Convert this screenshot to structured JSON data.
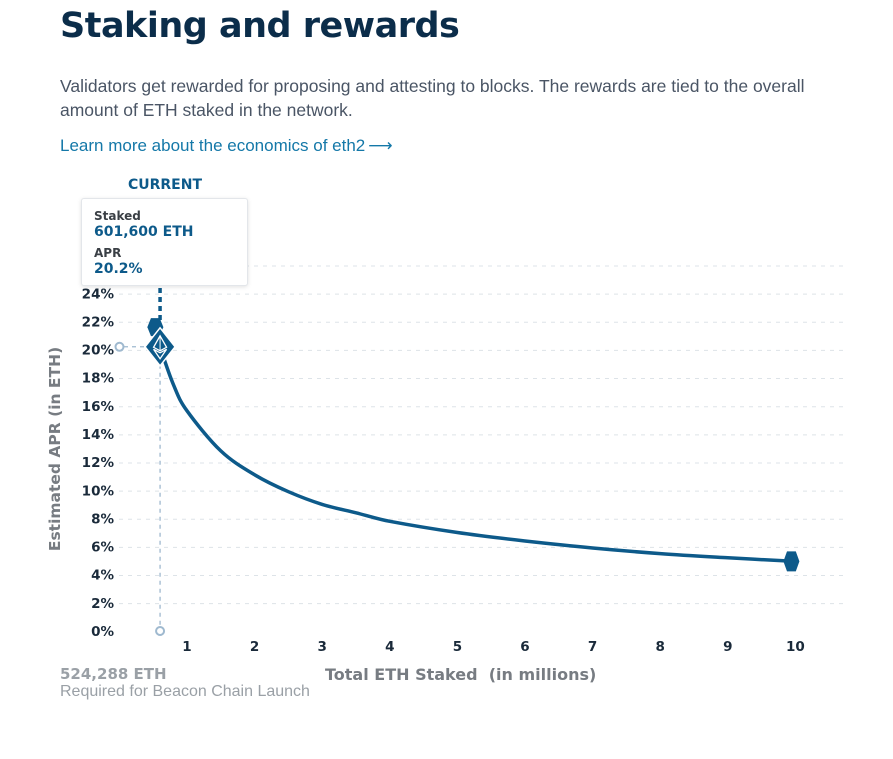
{
  "header": {
    "title": "Staking and rewards",
    "description": "Validators get rewarded for proposing and attesting to blocks. The rewards are tied to the overall amount of ETH staked in the network.",
    "link_label": "Learn more about the economics of eth2",
    "link_arrow": "⟶"
  },
  "marker": {
    "current_label": "CURRENT"
  },
  "tooltip": {
    "staked_label": "Staked",
    "staked_value": "601,600 ETH",
    "apr_label": "APR",
    "apr_value": "20.2%"
  },
  "footer": {
    "launch_eth": "524,288 ETH",
    "launch_caption": "Required for Beacon Chain Launch"
  },
  "colors": {
    "curve": "#0d5a8a",
    "grid": "#dde3e8",
    "guide": "#9fb9cf",
    "axis_text": "#1a2a3a"
  },
  "chart_data": {
    "type": "line",
    "title": "",
    "xlabel": "Total ETH Staked  (in millions)",
    "ylabel": "Estimated APR (in ETH)",
    "xlim": [
      0.0,
      10.7
    ],
    "ylim": [
      0,
      26
    ],
    "x_ticks": [
      1,
      2,
      3,
      4,
      5,
      6,
      7,
      8,
      9,
      10
    ],
    "x_tick_labels": [
      "1",
      "2",
      "3",
      "4",
      "5",
      "6",
      "7",
      "8",
      "9",
      "10"
    ],
    "y_ticks": [
      0,
      2,
      4,
      6,
      8,
      10,
      12,
      14,
      16,
      18,
      20,
      22,
      24
    ],
    "y_tick_labels": [
      "0%",
      "2%",
      "4%",
      "6%",
      "8%",
      "10%",
      "12%",
      "14%",
      "16%",
      "18%",
      "20%",
      "22%",
      "24%"
    ],
    "grid": true,
    "series": [
      {
        "x": [
          0.524288,
          0.6016,
          0.8,
          1,
          1.5,
          2,
          2.5,
          3,
          3.5,
          4,
          5,
          6,
          7,
          8,
          9,
          10
        ],
        "values": [
          21.6,
          20.2,
          17.5,
          15.65,
          12.8,
          11.1,
          9.9,
          9.0,
          8.4,
          7.8,
          7.0,
          6.4,
          5.9,
          5.5,
          5.2,
          4.95
        ]
      }
    ],
    "current": {
      "x": 0.6016,
      "y": 20.2
    },
    "launch": {
      "x": 0.524288,
      "y": 21.6
    },
    "end": {
      "x": 10,
      "y": 4.95
    }
  }
}
